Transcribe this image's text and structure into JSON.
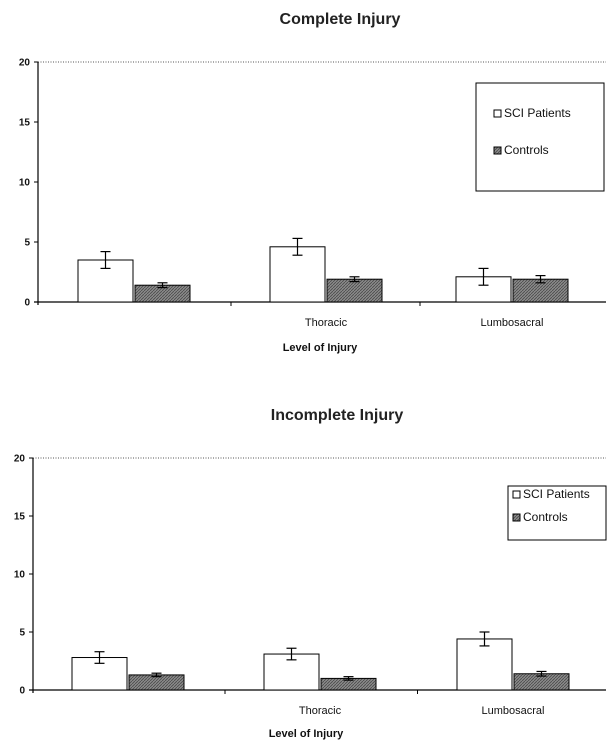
{
  "chart_data": [
    {
      "type": "bar",
      "title": "Complete Injury",
      "xlabel": "Level of Injury",
      "ylabel": "",
      "ylim": [
        0,
        20
      ],
      "yticks": [
        0,
        5,
        10,
        15,
        20
      ],
      "grid": false,
      "legend_position": "top-right",
      "categories": [
        "",
        "Thoracic",
        "Lumbosacral"
      ],
      "series": [
        {
          "name": "SCI Patients",
          "values": [
            3.5,
            4.6,
            2.1
          ],
          "errors": [
            0.7,
            0.7,
            0.7
          ],
          "fill": "#ffffff"
        },
        {
          "name": "Controls",
          "values": [
            1.4,
            1.9,
            1.9
          ],
          "errors": [
            0.2,
            0.2,
            0.3
          ],
          "fill": "#9a9a9a"
        }
      ]
    },
    {
      "type": "bar",
      "title": "Incomplete Injury",
      "xlabel": "Level of Injury",
      "ylabel": "",
      "ylim": [
        0,
        20
      ],
      "yticks": [
        0,
        5,
        10,
        15,
        20
      ],
      "grid": false,
      "legend_position": "top-right",
      "categories": [
        "",
        "Thoracic",
        "Lumbosacral"
      ],
      "series": [
        {
          "name": "SCI Patients",
          "values": [
            2.8,
            3.1,
            4.4
          ],
          "errors": [
            0.5,
            0.5,
            0.6
          ],
          "fill": "#ffffff"
        },
        {
          "name": "Controls",
          "values": [
            1.3,
            1.0,
            1.4
          ],
          "errors": [
            0.15,
            0.15,
            0.2
          ],
          "fill": "#9a9a9a"
        }
      ]
    }
  ]
}
